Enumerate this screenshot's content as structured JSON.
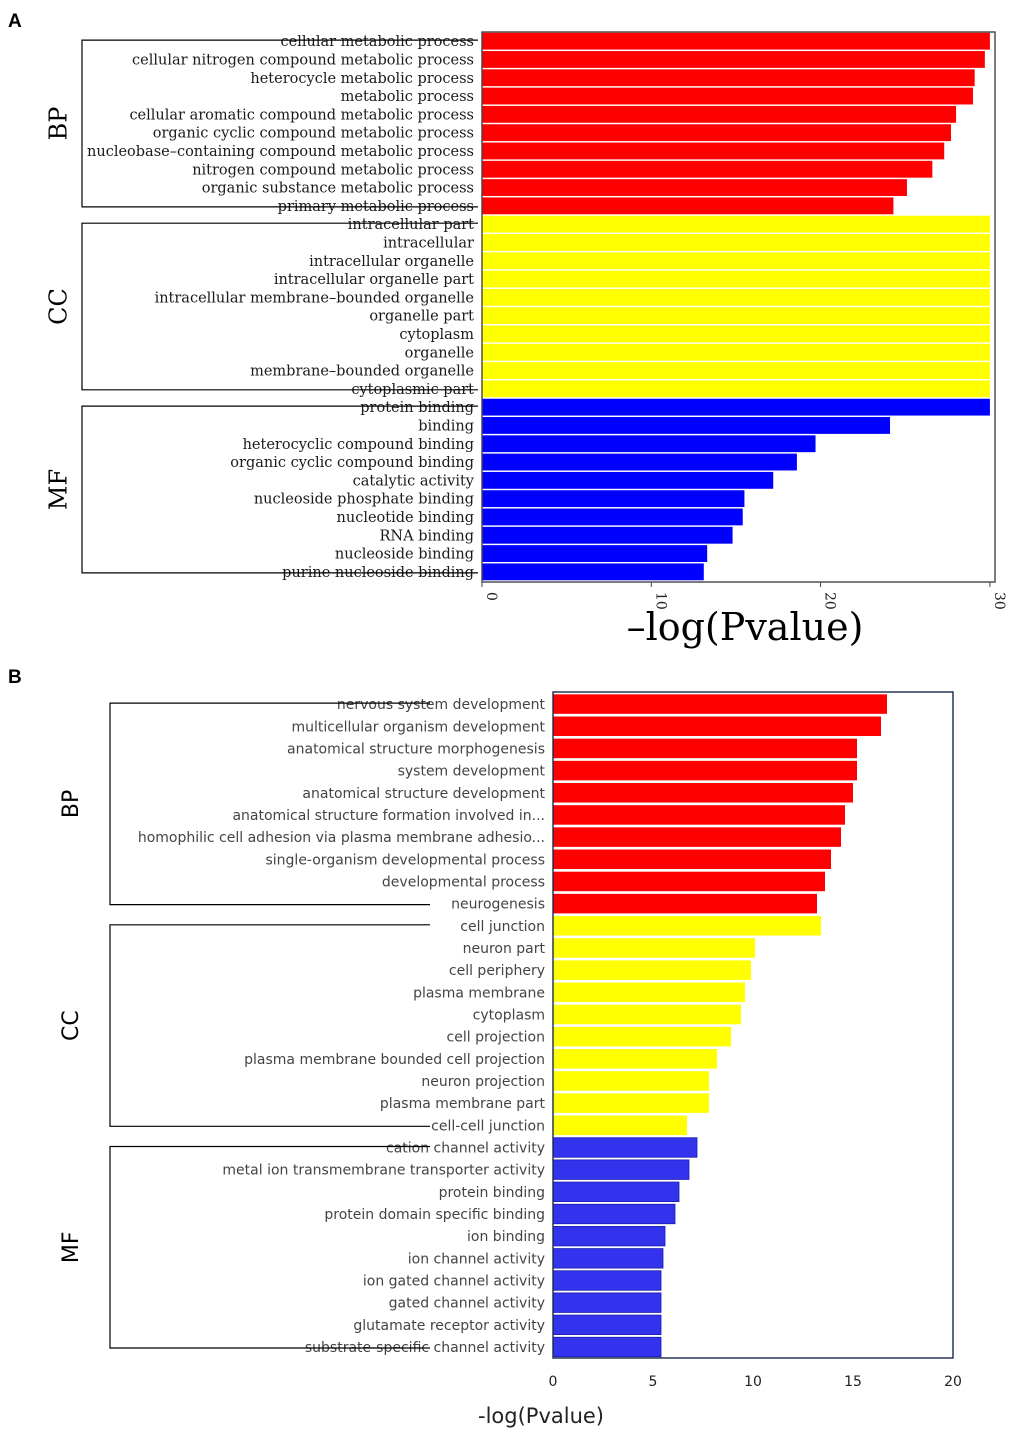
{
  "chart_data": [
    {
      "panel": "A",
      "type": "bar",
      "orientation": "horizontal",
      "xlabel": "–log(Pvalue)",
      "xlim": [
        0,
        30.3
      ],
      "xticks": [
        "0",
        "10",
        "20",
        "30"
      ],
      "groups": [
        {
          "name": "BP",
          "color": "#ff0000",
          "categories": [
            "cellular metabolic process",
            "cellular nitrogen compound metabolic process",
            "heterocycle metabolic process",
            "metabolic process",
            "cellular aromatic compound metabolic process",
            "organic cyclic compound metabolic process",
            "nucleobase–containing compound metabolic process",
            "nitrogen compound metabolic process",
            "organic substance metabolic process",
            "primary metabolic process"
          ],
          "values": [
            30.0,
            29.7,
            29.1,
            29.0,
            28.0,
            27.7,
            27.3,
            26.6,
            25.1,
            24.3
          ]
        },
        {
          "name": "CC",
          "color": "#ffff00",
          "categories": [
            "intracellular part",
            "intracellular",
            "intracellular organelle",
            "intracellular organelle part",
            "intracellular membrane–bounded organelle",
            "organelle part",
            "cytoplasm",
            "organelle",
            "membrane–bounded organelle",
            "cytoplasmic part"
          ],
          "values": [
            30,
            30,
            30,
            30,
            30,
            30,
            30,
            30,
            30,
            30
          ]
        },
        {
          "name": "MF",
          "color": "#0000ff",
          "categories": [
            "protein binding",
            "binding",
            "heterocyclic compound binding",
            "organic cyclic compound binding",
            "catalytic activity",
            "nucleoside phosphate binding",
            "nucleotide binding",
            "RNA binding",
            "nucleoside binding",
            "purine nucleoside binding"
          ],
          "values": [
            30.0,
            24.1,
            19.7,
            18.6,
            17.2,
            15.5,
            15.4,
            14.8,
            13.3,
            13.1
          ]
        }
      ]
    },
    {
      "panel": "B",
      "type": "bar",
      "orientation": "horizontal",
      "xlabel": "-log(Pvalue)",
      "xlim": [
        0,
        20
      ],
      "xticks": [
        "0",
        "5",
        "10",
        "15",
        "20"
      ],
      "groups": [
        {
          "name": "BP",
          "color": "#ff0000",
          "categories": [
            "nervous system development",
            "multicellular organism development",
            "anatomical structure morphogenesis",
            "system development",
            "anatomical structure development",
            "anatomical structure formation involved in...",
            "homophilic cell adhesion via plasma membrane adhesio...",
            "single-organism developmental process",
            "developmental process",
            "neurogenesis"
          ],
          "values": [
            16.7,
            16.4,
            15.2,
            15.2,
            15.0,
            14.6,
            14.4,
            13.9,
            13.6,
            13.2
          ]
        },
        {
          "name": "CC",
          "color": "#ffff00",
          "categories": [
            "cell junction",
            "neuron part",
            "cell periphery",
            "plasma membrane",
            "cytoplasm",
            "cell projection",
            "plasma membrane bounded cell projection",
            "neuron projection",
            "plasma membrane part",
            "cell-cell junction"
          ],
          "values": [
            13.4,
            10.1,
            9.9,
            9.6,
            9.4,
            8.9,
            8.2,
            7.8,
            7.8,
            6.7
          ]
        },
        {
          "name": "MF",
          "color": "#3333ee",
          "categories": [
            "cation channel activity",
            "metal ion transmembrane transporter activity",
            "protein binding",
            "protein domain specific binding",
            "ion binding",
            "ion channel activity",
            "ion gated channel activity",
            "gated channel activity",
            "glutamate receptor activity",
            "substrate-specific channel activity"
          ],
          "values": [
            7.2,
            6.8,
            6.3,
            6.1,
            5.6,
            5.5,
            5.4,
            5.4,
            5.4,
            5.4
          ]
        }
      ]
    }
  ],
  "panel_letters": [
    "A",
    "B"
  ]
}
